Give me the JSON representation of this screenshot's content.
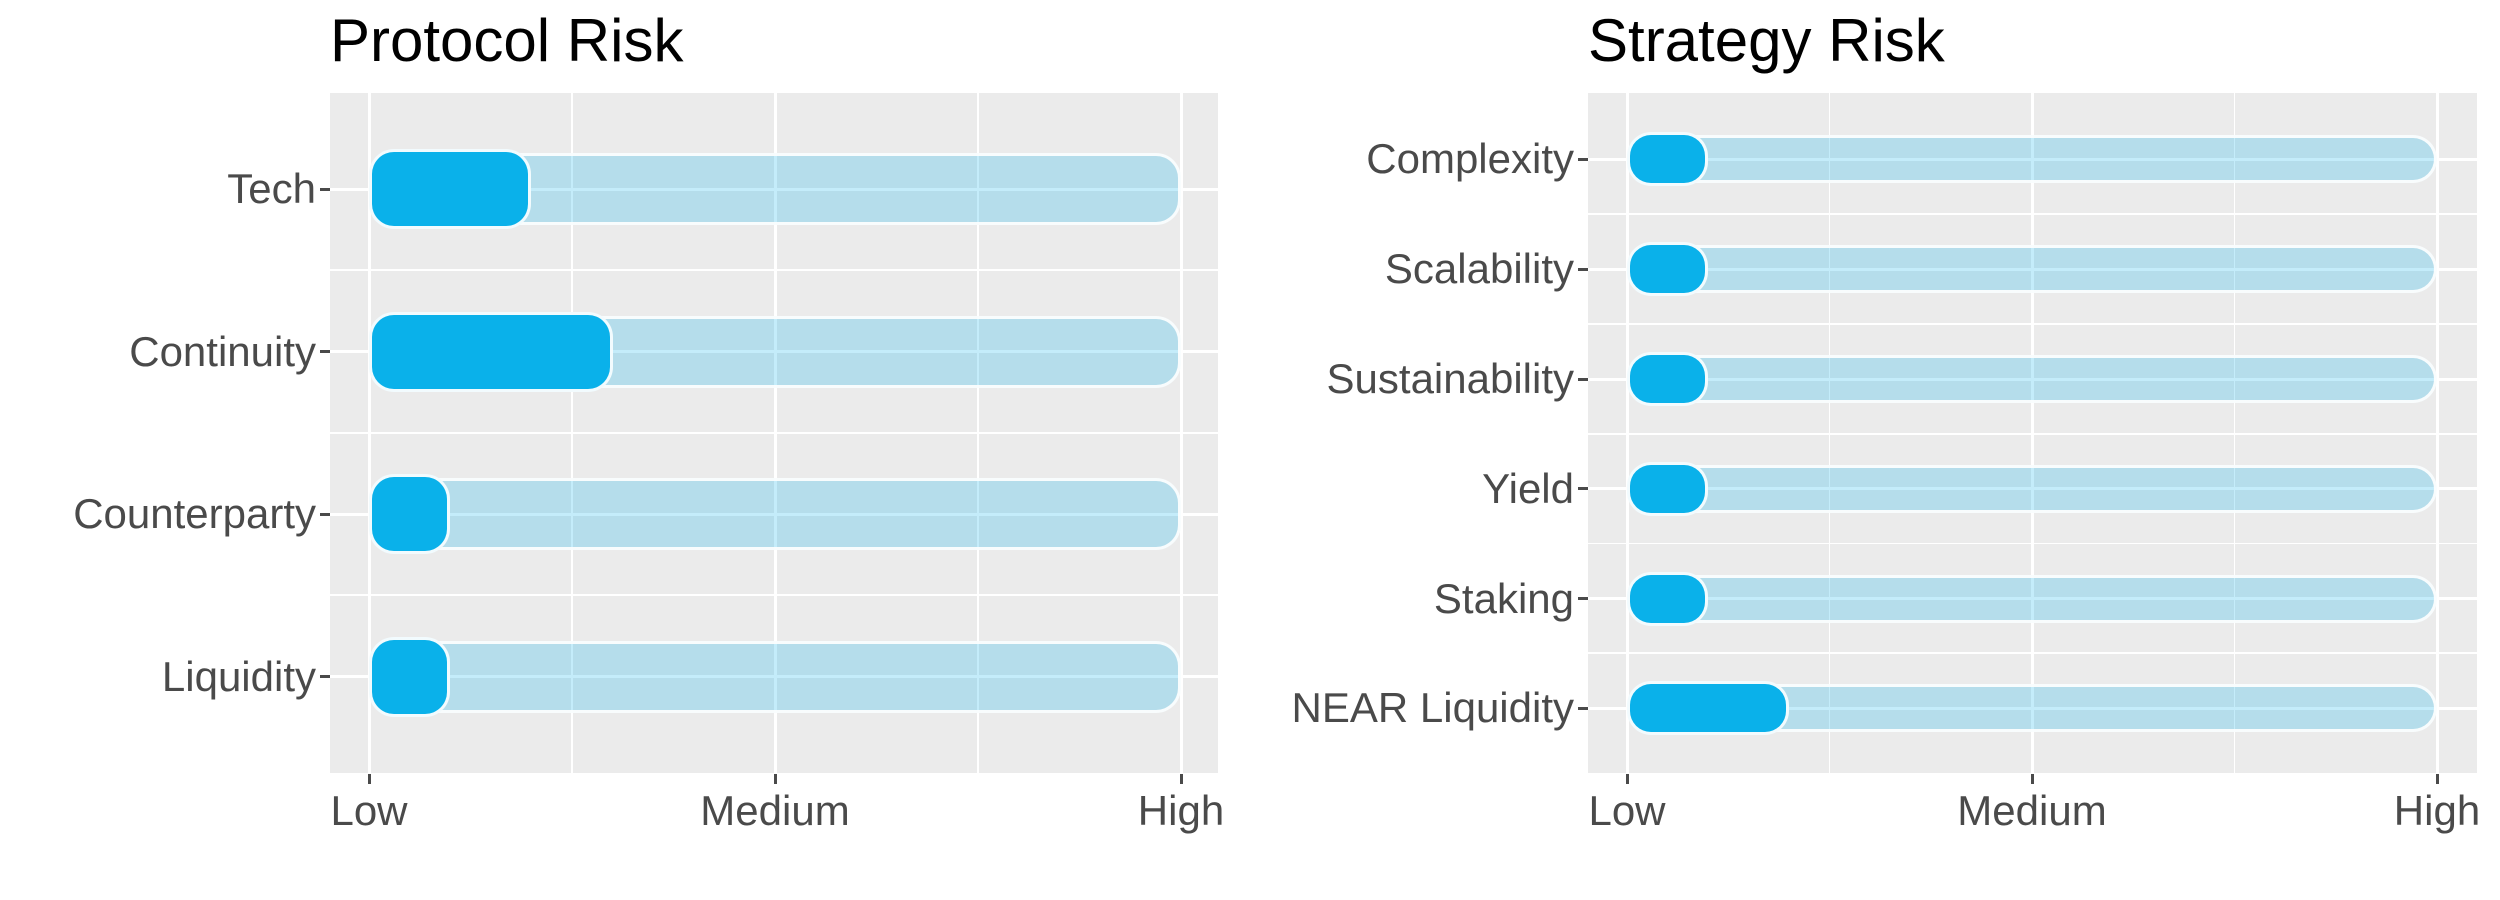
{
  "figure": {
    "background": "#ffffff"
  },
  "colors": {
    "bar_fill": "#0AB1EA",
    "track_fill_rgba": "rgba(10,177,234,0.24)",
    "panel_background": "#EBEBEB",
    "gridline": "#FFFFFF",
    "axis_text": "#4A4A4A",
    "title_text": "#000000",
    "tick_mark": "#4A4A4A",
    "bar_outline": "rgba(255,255,255,0.95)"
  },
  "chart_data": [
    {
      "type": "bar",
      "orientation": "horizontal",
      "title": "Protocol Risk",
      "categories": [
        "Tech",
        "Continuity",
        "Counterparty",
        "Liquidity"
      ],
      "values": [
        2,
        3,
        1,
        1
      ],
      "track_value": 10,
      "xlim": [
        0,
        10
      ],
      "x_tick_values": [
        0,
        5,
        10
      ],
      "x_tick_labels": [
        "Low",
        "Medium",
        "High"
      ],
      "x_minor_tick_values": [
        2.5,
        7.5
      ],
      "grid": true,
      "legend": false
    },
    {
      "type": "bar",
      "orientation": "horizontal",
      "title": "Strategy Risk",
      "categories": [
        "Complexity",
        "Scalability",
        "Sustainability",
        "Yield",
        "Staking",
        "NEAR Liquidity"
      ],
      "values": [
        1,
        1,
        1,
        1,
        1,
        2
      ],
      "track_value": 10,
      "xlim": [
        0,
        10
      ],
      "x_tick_values": [
        0,
        5,
        10
      ],
      "x_tick_labels": [
        "Low",
        "Medium",
        "High"
      ],
      "x_minor_tick_values": [
        2.5,
        7.5
      ],
      "grid": true,
      "legend": false
    }
  ]
}
